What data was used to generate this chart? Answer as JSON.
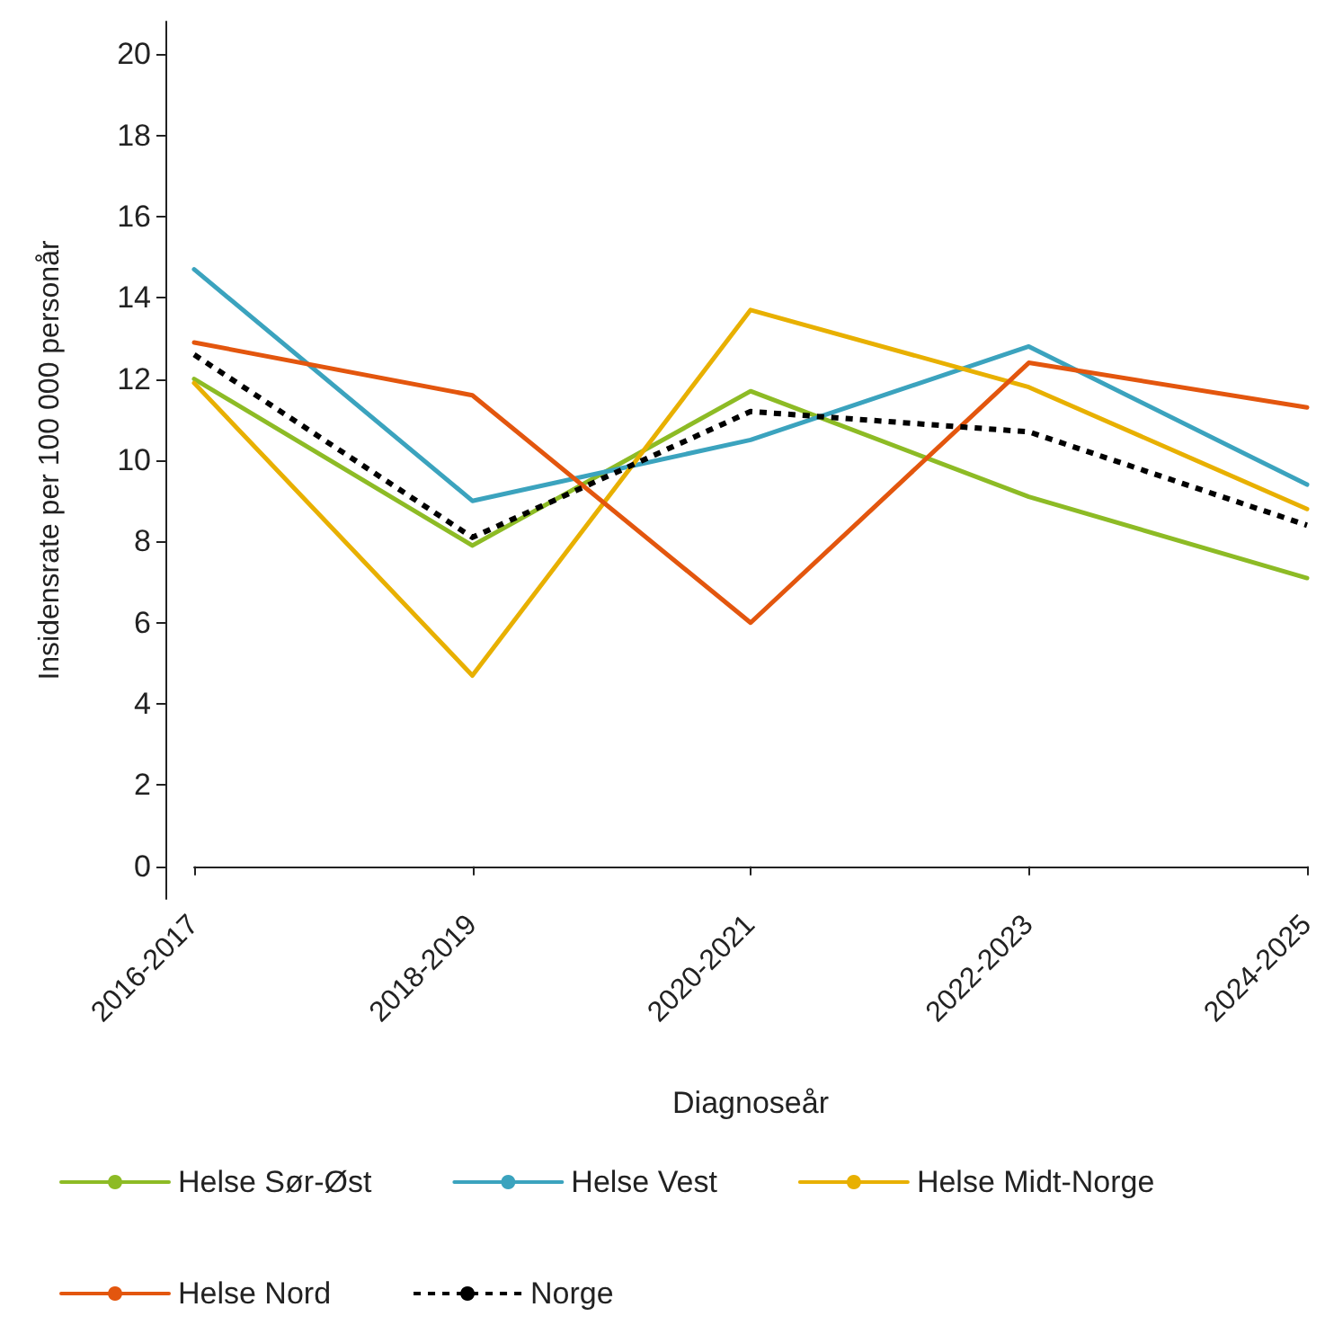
{
  "chart_data": {
    "type": "line",
    "xlabel": "Diagnoseår",
    "ylabel": "Insidensrate per 100 000 personår",
    "categories": [
      "2016-2017",
      "2018-2019",
      "2020-2021",
      "2022-2023",
      "2024-2025"
    ],
    "series": [
      {
        "name": "Helse Sør-Øst",
        "color": "#8dbb25",
        "values": [
          12.0,
          7.9,
          11.7,
          9.1,
          7.1
        ]
      },
      {
        "name": "Helse Vest",
        "color": "#3ba3be",
        "values": [
          14.7,
          9.0,
          10.5,
          12.8,
          9.4
        ]
      },
      {
        "name": "Helse Midt-Norge",
        "color": "#e8b000",
        "values": [
          11.9,
          4.7,
          13.7,
          11.8,
          8.8
        ]
      },
      {
        "name": "Helse Nord",
        "color": "#e3560e",
        "values": [
          12.9,
          11.6,
          6.0,
          12.4,
          11.3
        ]
      },
      {
        "name": "Norge",
        "color": "#000000",
        "values": [
          12.6,
          8.1,
          11.2,
          10.7,
          8.4
        ],
        "line_style": "dashed"
      }
    ],
    "ylim": [
      -0.8,
      20.8
    ],
    "yticks": [
      0,
      2,
      4,
      6,
      8,
      10,
      12,
      14,
      16,
      18,
      20
    ],
    "grid": false,
    "legend": "bottom",
    "marker": "none",
    "line_style": "solid"
  }
}
